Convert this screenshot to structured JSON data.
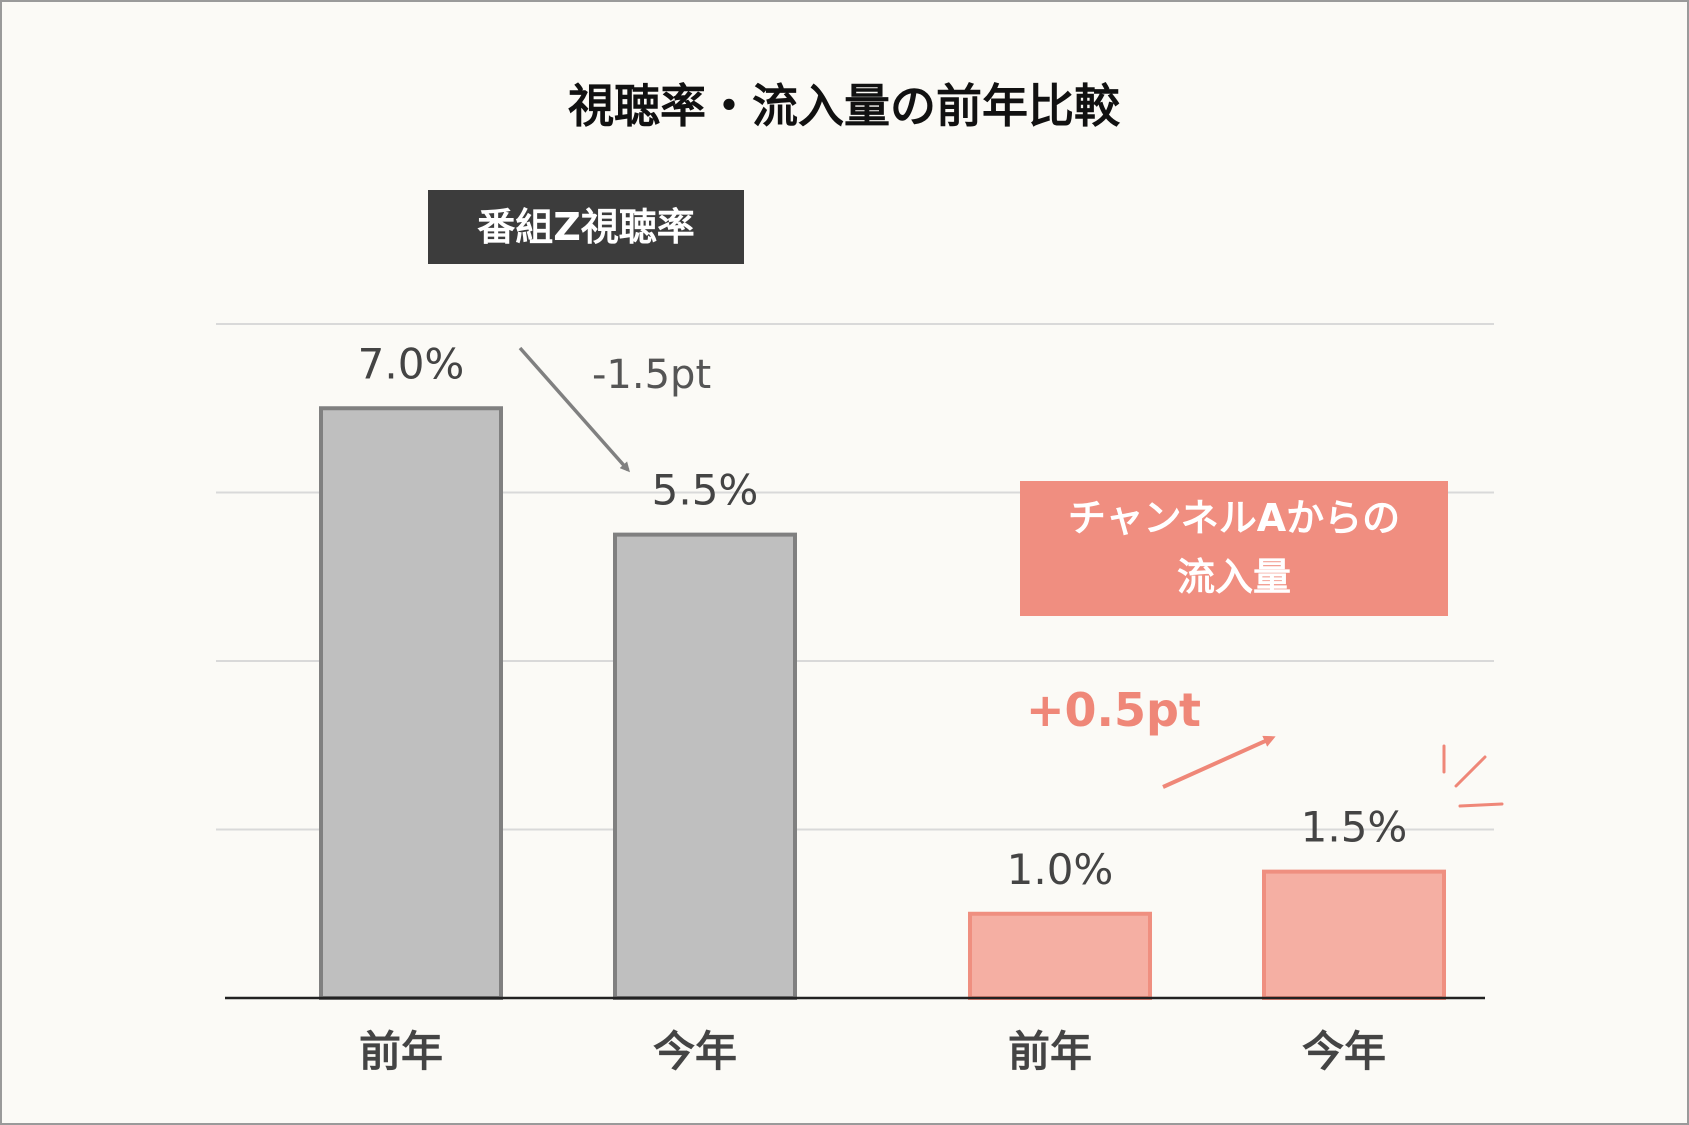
{
  "colors": {
    "gray_fill": "#bfbfbf",
    "gray_stroke": "#808080",
    "salmon_fill": "#f5afa3",
    "salmon_stroke": "#ef8f80",
    "salmon_label_bg": "#f08e80",
    "dark_label_bg": "#3c3c3c",
    "gridline": "#d9d9d9",
    "axis": "#222222"
  },
  "chart_data": [
    {
      "type": "bar",
      "title": "視聴率・流入量の前年比較",
      "group_label": "番組Z視聴率",
      "categories": [
        "前年",
        "今年"
      ],
      "values": [
        7.0,
        5.5
      ],
      "value_labels": [
        "7.0%",
        "5.5%"
      ],
      "ylim": [
        0,
        8
      ],
      "grid": true,
      "change_label": "-1.5pt"
    },
    {
      "type": "bar",
      "group_label_lines": [
        "チャンネルAからの",
        "流入量"
      ],
      "categories": [
        "前年",
        "今年"
      ],
      "values": [
        1.0,
        1.5
      ],
      "value_labels": [
        "1.0%",
        "1.5%"
      ],
      "ylim": [
        0,
        8
      ],
      "grid": true,
      "change_label": "+0.5pt"
    }
  ]
}
